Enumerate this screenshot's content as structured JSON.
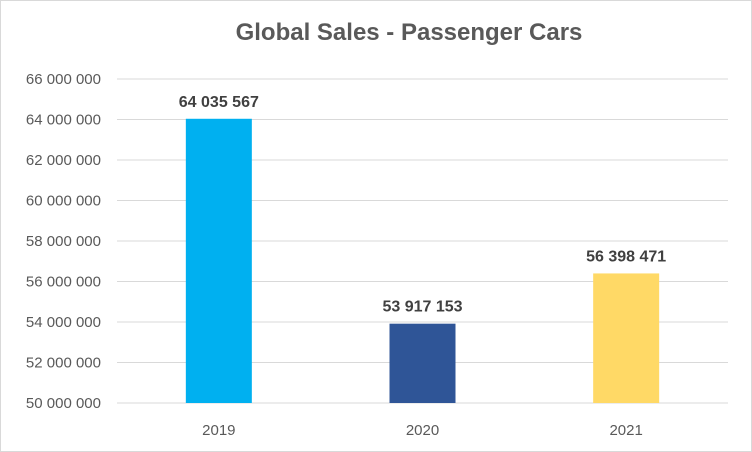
{
  "chart_data": {
    "type": "bar",
    "title": "Global Sales - Passenger Cars",
    "xlabel": "",
    "ylabel": "",
    "categories": [
      "2019",
      "2020",
      "2021"
    ],
    "values": [
      64035567,
      53917153,
      56398471
    ],
    "value_labels": [
      "64 035 567",
      "53 917 153",
      "56 398 471"
    ],
    "colors": [
      "#00b0f0",
      "#2f5597",
      "#ffd966"
    ],
    "ylim": [
      50000000,
      66000000
    ],
    "yticks": [
      50000000,
      52000000,
      54000000,
      56000000,
      58000000,
      60000000,
      62000000,
      64000000,
      66000000
    ],
    "ytick_labels": [
      "50 000 000",
      "52 000 000",
      "54 000 000",
      "56 000 000",
      "58 000 000",
      "60 000 000",
      "62 000 000",
      "64 000 000",
      "66 000 000"
    ],
    "grid": true,
    "legend": "none"
  }
}
